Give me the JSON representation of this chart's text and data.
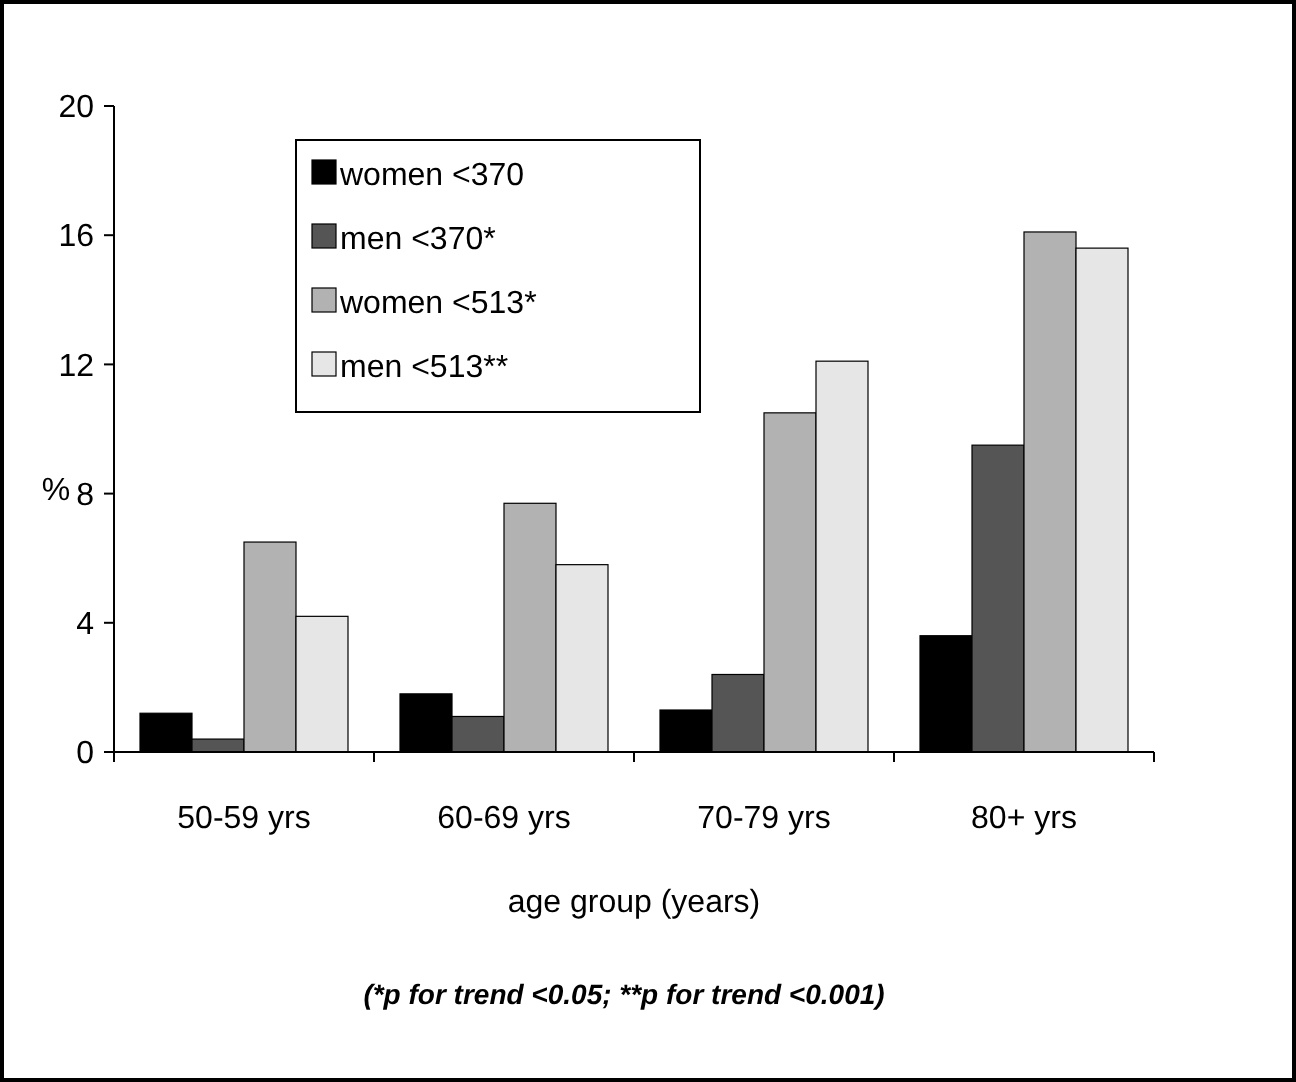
{
  "chart_data": {
    "type": "bar",
    "xlabel": "age group (years)",
    "ylabel": "%",
    "categories": [
      "50-59 yrs",
      "60-69 yrs",
      "70-79 yrs",
      "80+ yrs"
    ],
    "series": [
      {
        "name": "women <370",
        "color": "#000000",
        "values": [
          1.2,
          1.8,
          1.3,
          3.6
        ]
      },
      {
        "name": "men <370*",
        "color": "#555555",
        "values": [
          0.4,
          1.1,
          2.4,
          9.5
        ]
      },
      {
        "name": "women <513*",
        "color": "#b2b2b2",
        "values": [
          6.5,
          7.7,
          10.5,
          16.1
        ]
      },
      {
        "name": "men <513**",
        "color": "#e6e6e6",
        "values": [
          4.2,
          5.8,
          12.1,
          15.6
        ]
      }
    ],
    "ylim": [
      0,
      20
    ],
    "yticks": [
      0,
      4,
      8,
      12,
      16,
      20
    ],
    "grid": false,
    "legend": "top left",
    "annotations": [
      "(*p for trend <0.05; **p for trend <0.001)"
    ]
  }
}
